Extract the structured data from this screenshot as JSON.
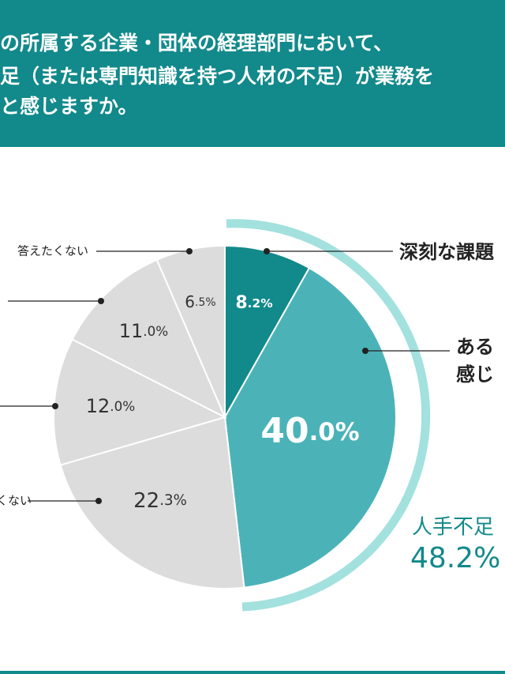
{
  "chart_data": {
    "type": "pie",
    "title_lines": [
      "の所属する企業・団体の経理部門において、",
      "足（または専門知識を持つ人材の不足）が業務を",
      "と感じますか。"
    ],
    "categories": [
      "深刻な課題",
      "ある\n感じ",
      "くない",
      null,
      null,
      "答えたくない"
    ],
    "values": [
      8.2,
      40.0,
      22.3,
      12.0,
      11.0,
      6.5
    ],
    "value_labels": [
      "8.2%",
      "40.0%",
      "22.3%",
      "12.0%",
      "11.0%",
      "6.5%"
    ],
    "colors": [
      "#12898b",
      "#4bb3b8",
      "#dcdcdc",
      "#dcdcdc",
      "#dcdcdc",
      "#dcdcdc"
    ],
    "annotation": {
      "label": "人手不足",
      "value_label": "48.2%"
    }
  }
}
